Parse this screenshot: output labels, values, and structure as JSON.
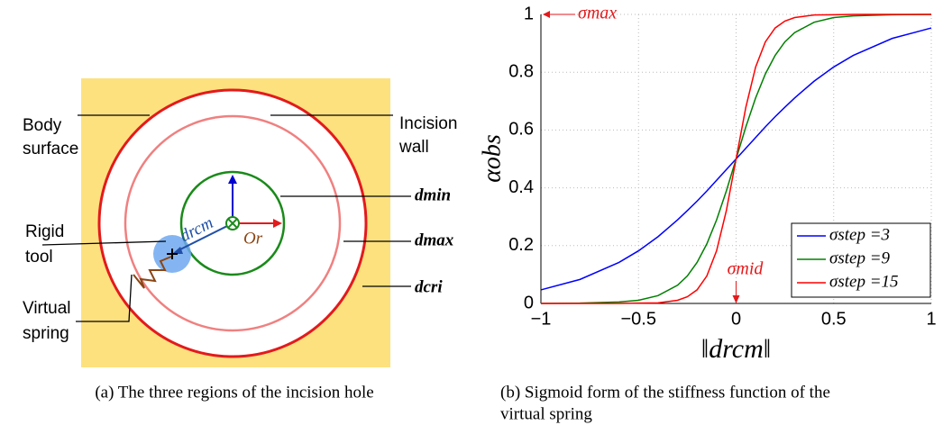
{
  "figure": {
    "left": {
      "body_surface": [
        "Body",
        "surface"
      ],
      "incision_wall": [
        "Incision",
        "wall"
      ],
      "d_min": "dmin",
      "d_max": "dmax",
      "d_cri": "dcri",
      "rigid_tool": [
        "Rigid",
        "tool"
      ],
      "virtual_spring": [
        "Virtual",
        "spring"
      ],
      "d_rcm": "drcm",
      "o_r": "Or",
      "caption": "(a) The three regions of the incision hole"
    },
    "right": {
      "caption": [
        "(b) Sigmoid form of the stiffness function of the",
        "virtual spring"
      ]
    }
  },
  "chart_data": {
    "type": "line",
    "xlabel": "‖drcm‖",
    "ylabel": "αobs",
    "annotations": [
      "σmax",
      "σmid"
    ],
    "x": [
      -1,
      -0.8,
      -0.6,
      -0.5,
      -0.4,
      -0.3,
      -0.25,
      -0.2,
      -0.15,
      -0.1,
      -0.05,
      0,
      0.05,
      0.1,
      0.15,
      0.2,
      0.25,
      0.3,
      0.4,
      0.5,
      0.6,
      0.8,
      1
    ],
    "series": [
      {
        "name": "σstep =3",
        "color": "#0000ff",
        "values": [
          0.047,
          0.083,
          0.142,
          0.182,
          0.231,
          0.289,
          0.321,
          0.354,
          0.389,
          0.426,
          0.463,
          0.5,
          0.537,
          0.574,
          0.611,
          0.646,
          0.679,
          0.711,
          0.769,
          0.818,
          0.858,
          0.917,
          0.953
        ]
      },
      {
        "name": "σstep =9",
        "color": "#008000",
        "values": [
          0.0,
          0.001,
          0.005,
          0.011,
          0.027,
          0.063,
          0.095,
          0.142,
          0.206,
          0.289,
          0.389,
          0.5,
          0.611,
          0.711,
          0.794,
          0.858,
          0.905,
          0.937,
          0.973,
          0.989,
          0.995,
          0.999,
          1.0
        ]
      },
      {
        "name": "σstep =15",
        "color": "#ff0000",
        "values": [
          0.0,
          0.0,
          0.0,
          0.001,
          0.002,
          0.011,
          0.023,
          0.047,
          0.095,
          0.182,
          0.321,
          0.5,
          0.679,
          0.818,
          0.905,
          0.953,
          0.977,
          0.989,
          0.998,
          0.999,
          1.0,
          1.0,
          1.0
        ]
      }
    ],
    "xlim": [
      -1,
      1
    ],
    "ylim": [
      0,
      1
    ],
    "xticks": [
      {
        "value": -1,
        "label": "−1"
      },
      {
        "value": -0.5,
        "label": "−0.5"
      },
      0,
      0.5,
      1
    ],
    "yticks": [
      0,
      0.2,
      0.4,
      0.6,
      0.8,
      1
    ],
    "grid": true,
    "legend": "lower right"
  }
}
